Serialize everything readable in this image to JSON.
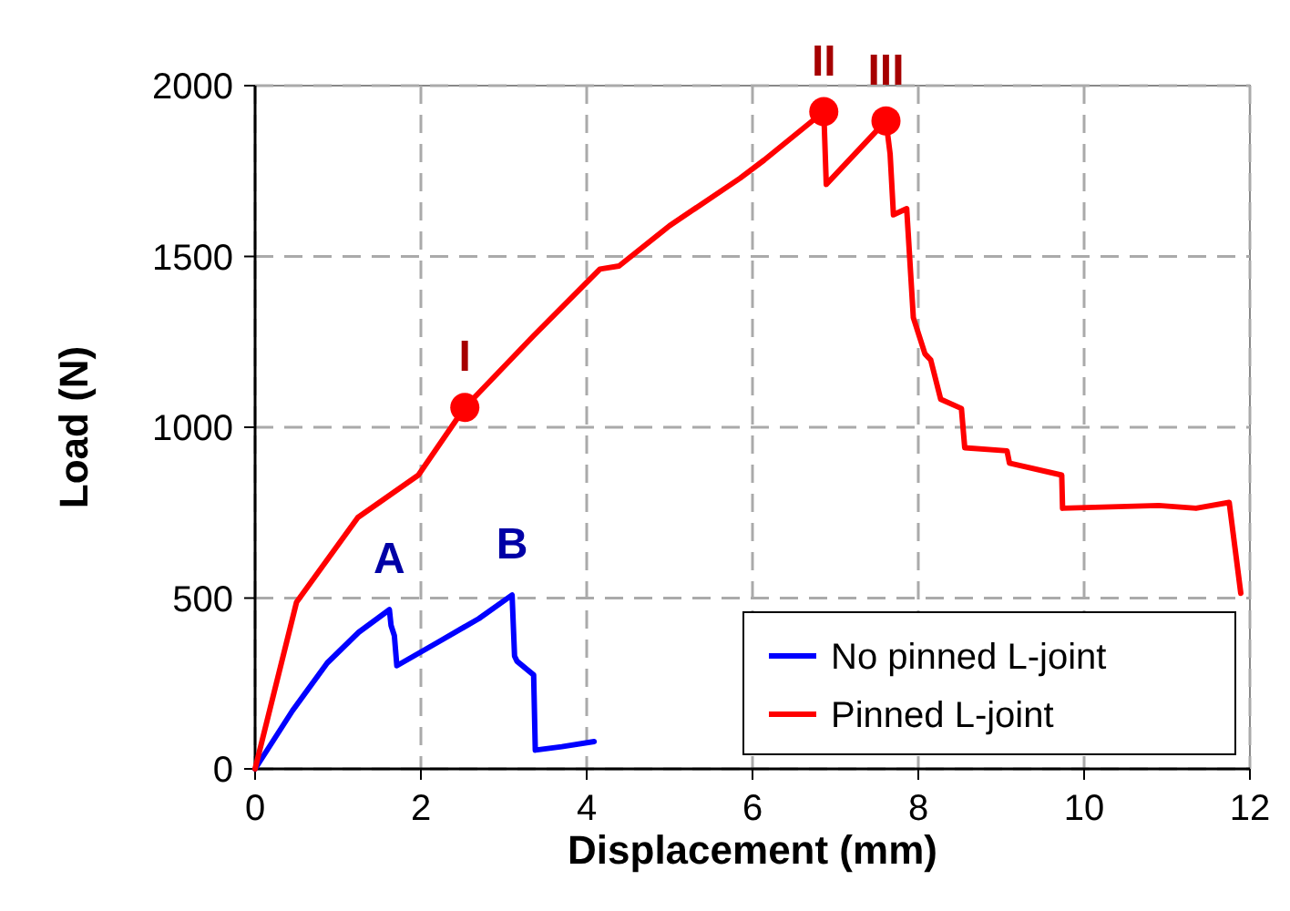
{
  "chart_data": {
    "type": "line",
    "xlabel": "Displacement (mm)",
    "ylabel": "Load (N)",
    "xlim": [
      0,
      12
    ],
    "xticks": [
      0,
      2,
      4,
      6,
      8,
      10,
      12
    ],
    "ylim": [
      0,
      2000
    ],
    "yticks": [
      0,
      500,
      1000,
      1500,
      2000
    ],
    "grid": true,
    "legend": "bottom right",
    "line_style": "solid",
    "series": [
      {
        "name": "No pinned L-joint",
        "color": "#0000ff",
        "x": [
          0,
          0.45,
          0.87,
          1.25,
          1.62,
          1.64,
          1.68,
          1.71,
          2.2,
          2.7,
          3.1,
          3.13,
          3.16,
          3.36,
          3.38,
          3.7,
          4.09
        ],
        "values": [
          0,
          170,
          310,
          400,
          466,
          420,
          390,
          302,
          370,
          440,
          509,
          330,
          315,
          275,
          55,
          65,
          80
        ]
      },
      {
        "name": "Pinned L-joint",
        "color": "#ff0000",
        "x": [
          0,
          0.5,
          1.24,
          1.97,
          2.53,
          3.36,
          4.16,
          4.39,
          5.0,
          5.85,
          6.14,
          6.86,
          6.89,
          7.61,
          7.66,
          7.7,
          7.86,
          7.94,
          8.08,
          8.15,
          8.27,
          8.52,
          8.56,
          9.07,
          9.1,
          9.73,
          9.74,
          10.9,
          11.35,
          11.75,
          11.82,
          11.89
        ],
        "values": [
          0,
          488,
          736,
          860,
          1058,
          1268,
          1463,
          1472,
          1590,
          1729,
          1782,
          1924,
          1711,
          1897,
          1800,
          1622,
          1640,
          1321,
          1215,
          1197,
          1082,
          1055,
          940,
          931,
          895,
          860,
          763,
          771,
          763,
          780,
          647,
          514
        ]
      },
      {
        "type": "scatter",
        "color": "#ff0000",
        "marker": "circle",
        "x": [
          2.53,
          6.86,
          7.61
        ],
        "values": [
          1058,
          1924,
          1897
        ]
      }
    ],
    "annotations": [
      {
        "text": "I",
        "x": 2.53,
        "y": 1058
      },
      {
        "text": "II",
        "x": 6.86,
        "y": 1924
      },
      {
        "text": "III",
        "x": 7.61,
        "y": 1897
      },
      {
        "text": "A",
        "x": 1.62,
        "y": 466
      },
      {
        "text": "B",
        "x": 3.1,
        "y": 509
      }
    ]
  }
}
